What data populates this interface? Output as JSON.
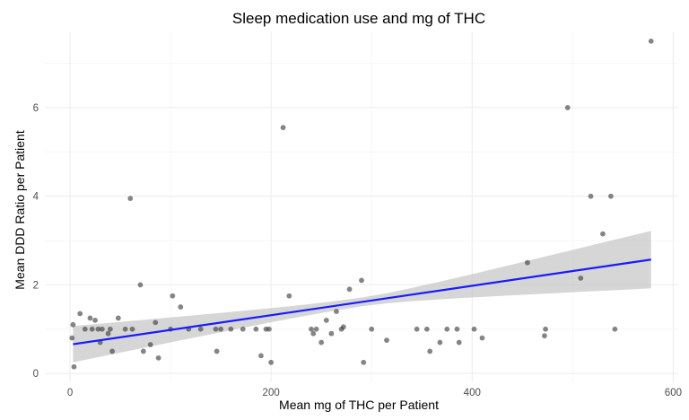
{
  "chart_data": {
    "type": "scatter",
    "title": "Sleep medication use and mg of THC",
    "xlabel": "Mean mg of THC per Patient",
    "ylabel": "Mean DDD Ratio per Patient",
    "xlim": [
      -25,
      605
    ],
    "ylim": [
      -0.2,
      7.7
    ],
    "x_ticks": [
      0,
      200,
      400,
      600
    ],
    "y_ticks": [
      0,
      2,
      4,
      6
    ],
    "grid": true,
    "points": [
      {
        "x": 2,
        "y": 0.8
      },
      {
        "x": 3,
        "y": 1.1
      },
      {
        "x": 4,
        "y": 0.15
      },
      {
        "x": 10,
        "y": 1.35
      },
      {
        "x": 15,
        "y": 1.0
      },
      {
        "x": 20,
        "y": 1.25
      },
      {
        "x": 22,
        "y": 1.0
      },
      {
        "x": 25,
        "y": 1.2
      },
      {
        "x": 28,
        "y": 1.0
      },
      {
        "x": 30,
        "y": 0.7
      },
      {
        "x": 32,
        "y": 1.0
      },
      {
        "x": 38,
        "y": 0.9
      },
      {
        "x": 40,
        "y": 1.0
      },
      {
        "x": 42,
        "y": 0.5
      },
      {
        "x": 48,
        "y": 1.25
      },
      {
        "x": 55,
        "y": 1.0
      },
      {
        "x": 60,
        "y": 3.95
      },
      {
        "x": 62,
        "y": 1.0
      },
      {
        "x": 70,
        "y": 2.0
      },
      {
        "x": 73,
        "y": 0.5
      },
      {
        "x": 80,
        "y": 0.65
      },
      {
        "x": 85,
        "y": 1.15
      },
      {
        "x": 88,
        "y": 0.35
      },
      {
        "x": 100,
        "y": 1.0
      },
      {
        "x": 102,
        "y": 1.75
      },
      {
        "x": 110,
        "y": 1.5
      },
      {
        "x": 118,
        "y": 1.0
      },
      {
        "x": 130,
        "y": 1.0
      },
      {
        "x": 145,
        "y": 1.0
      },
      {
        "x": 146,
        "y": 0.5
      },
      {
        "x": 150,
        "y": 1.0
      },
      {
        "x": 160,
        "y": 1.0
      },
      {
        "x": 172,
        "y": 1.0
      },
      {
        "x": 185,
        "y": 1.0
      },
      {
        "x": 190,
        "y": 0.4
      },
      {
        "x": 195,
        "y": 1.0
      },
      {
        "x": 198,
        "y": 1.0
      },
      {
        "x": 200,
        "y": 0.25
      },
      {
        "x": 212,
        "y": 5.55
      },
      {
        "x": 218,
        "y": 1.75
      },
      {
        "x": 240,
        "y": 1.0
      },
      {
        "x": 242,
        "y": 0.9
      },
      {
        "x": 245,
        "y": 1.0
      },
      {
        "x": 250,
        "y": 0.7
      },
      {
        "x": 255,
        "y": 1.2
      },
      {
        "x": 260,
        "y": 0.9
      },
      {
        "x": 265,
        "y": 1.4
      },
      {
        "x": 270,
        "y": 1.0
      },
      {
        "x": 272,
        "y": 1.05
      },
      {
        "x": 278,
        "y": 1.9
      },
      {
        "x": 290,
        "y": 2.1
      },
      {
        "x": 292,
        "y": 0.25
      },
      {
        "x": 300,
        "y": 1.0
      },
      {
        "x": 315,
        "y": 0.75
      },
      {
        "x": 345,
        "y": 1.0
      },
      {
        "x": 355,
        "y": 1.0
      },
      {
        "x": 358,
        "y": 0.5
      },
      {
        "x": 368,
        "y": 0.7
      },
      {
        "x": 375,
        "y": 1.0
      },
      {
        "x": 385,
        "y": 1.0
      },
      {
        "x": 387,
        "y": 0.7
      },
      {
        "x": 402,
        "y": 1.0
      },
      {
        "x": 410,
        "y": 0.8
      },
      {
        "x": 455,
        "y": 2.5
      },
      {
        "x": 472,
        "y": 0.85
      },
      {
        "x": 473,
        "y": 1.0
      },
      {
        "x": 495,
        "y": 6.0
      },
      {
        "x": 508,
        "y": 2.15
      },
      {
        "x": 518,
        "y": 4.0
      },
      {
        "x": 530,
        "y": 3.15
      },
      {
        "x": 538,
        "y": 4.0
      },
      {
        "x": 542,
        "y": 1.0
      },
      {
        "x": 578,
        "y": 7.5
      }
    ],
    "fit": {
      "method": "linear",
      "x": [
        3,
        578
      ],
      "y": [
        0.66,
        2.57
      ],
      "ci_lower": [
        0.25,
        1.92
      ],
      "ci_upper": [
        1.07,
        3.22
      ],
      "line_color": "#1a1aff",
      "band_color": "#bdbdbd"
    }
  }
}
